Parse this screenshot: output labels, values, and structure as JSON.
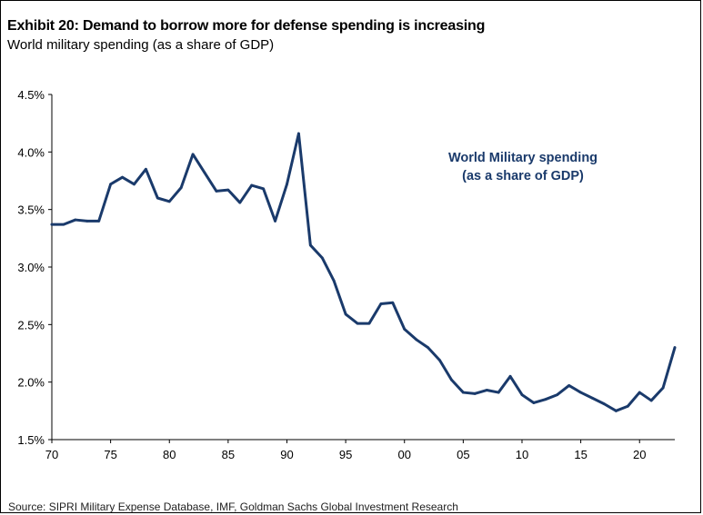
{
  "header": {
    "title": "Exhibit 20: Demand to borrow more for defense spending is increasing",
    "subtitle": "World military spending (as a share of GDP)"
  },
  "footer": {
    "source": "Source: SIPRI Military Expense Database, IMF, Goldman Sachs Global Investment Research"
  },
  "colors": {
    "line": "#1a3a6b",
    "axis": "#000000"
  },
  "chart_data": {
    "type": "line",
    "title": "World Military spending (as a share of GDP)",
    "annotation": [
      "World Military spending",
      "(as a share of GDP)"
    ],
    "xlabel": "",
    "ylabel": "",
    "xlim": [
      1970,
      2023
    ],
    "ylim": [
      1.5,
      4.5
    ],
    "grid": false,
    "x_ticks": [
      1970,
      1975,
      1980,
      1985,
      1990,
      1995,
      2000,
      2005,
      2010,
      2015,
      2020
    ],
    "x_tick_labels": [
      "70",
      "75",
      "80",
      "85",
      "90",
      "95",
      "00",
      "05",
      "10",
      "15",
      "20"
    ],
    "y_ticks": [
      1.5,
      2.0,
      2.5,
      3.0,
      3.5,
      4.0,
      4.5
    ],
    "y_tick_labels": [
      "1.5%",
      "2.0%",
      "2.5%",
      "3.0%",
      "3.5%",
      "4.0%",
      "4.5%"
    ],
    "series": [
      {
        "name": "World Military spending (as a share of GDP)",
        "x": [
          1970,
          1971,
          1972,
          1973,
          1974,
          1975,
          1976,
          1977,
          1978,
          1979,
          1980,
          1981,
          1982,
          1983,
          1984,
          1985,
          1986,
          1987,
          1988,
          1989,
          1990,
          1991,
          1992,
          1993,
          1994,
          1995,
          1996,
          1997,
          1998,
          1999,
          2000,
          2001,
          2002,
          2003,
          2004,
          2005,
          2006,
          2007,
          2008,
          2009,
          2010,
          2011,
          2012,
          2013,
          2014,
          2015,
          2016,
          2017,
          2018,
          2019,
          2020,
          2021,
          2022,
          2023
        ],
        "values": [
          3.37,
          3.37,
          3.41,
          3.4,
          3.4,
          3.72,
          3.78,
          3.72,
          3.85,
          3.6,
          3.57,
          3.69,
          3.98,
          3.82,
          3.66,
          3.67,
          3.56,
          3.71,
          3.68,
          3.4,
          3.72,
          4.16,
          3.19,
          3.08,
          2.88,
          2.59,
          2.51,
          2.51,
          2.68,
          2.69,
          2.46,
          2.37,
          2.3,
          2.19,
          2.02,
          1.91,
          1.9,
          1.93,
          1.91,
          2.05,
          1.89,
          1.82,
          1.85,
          1.89,
          1.97,
          1.91,
          1.86,
          1.81,
          1.75,
          1.79,
          1.91,
          1.84,
          1.95,
          2.3
        ]
      }
    ]
  }
}
